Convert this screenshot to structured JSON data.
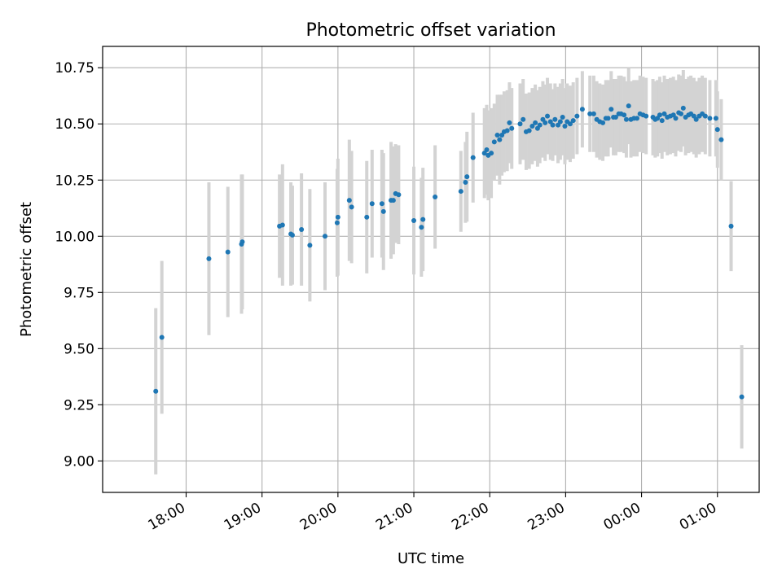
{
  "chart_data": {
    "type": "scatter",
    "title": "Photometric offset variation",
    "xlabel": "UTC time",
    "ylabel": "Photometric offset",
    "x_unit": "hours since 00:00 UTC of first night",
    "xlim": [
      16.9,
      25.55
    ],
    "ylim": [
      8.86,
      10.845
    ],
    "grid": true,
    "xticks": [
      {
        "value": 18,
        "label": "18:00"
      },
      {
        "value": 19,
        "label": "19:00"
      },
      {
        "value": 20,
        "label": "20:00"
      },
      {
        "value": 21,
        "label": "21:00"
      },
      {
        "value": 22,
        "label": "22:00"
      },
      {
        "value": 23,
        "label": "23:00"
      },
      {
        "value": 24,
        "label": "00:00"
      },
      {
        "value": 25,
        "label": "01:00"
      }
    ],
    "yticks": [
      {
        "value": 9.0,
        "label": "9.00"
      },
      {
        "value": 9.25,
        "label": "9.25"
      },
      {
        "value": 9.5,
        "label": "9.50"
      },
      {
        "value": 9.75,
        "label": "9.75"
      },
      {
        "value": 10.0,
        "label": "10.00"
      },
      {
        "value": 10.25,
        "label": "10.25"
      },
      {
        "value": 10.5,
        "label": "10.50"
      },
      {
        "value": 10.75,
        "label": "10.75"
      }
    ],
    "colors": {
      "points": "#1f77b4",
      "errorbars": "#d3d3d3",
      "grid": "#b0b0b0"
    },
    "points": [
      [
        17.6,
        9.31,
        0.37
      ],
      [
        17.68,
        9.55,
        0.34
      ],
      [
        18.3,
        9.9,
        0.34
      ],
      [
        18.55,
        9.93,
        0.29
      ],
      [
        18.73,
        9.965,
        0.31
      ],
      [
        18.74,
        9.975,
        0.3
      ],
      [
        19.23,
        10.045,
        0.23
      ],
      [
        19.27,
        10.05,
        0.27
      ],
      [
        19.38,
        10.01,
        0.23
      ],
      [
        19.4,
        10.005,
        0.22
      ],
      [
        19.52,
        10.03,
        0.25
      ],
      [
        19.63,
        9.96,
        0.25
      ],
      [
        19.83,
        10.0,
        0.24
      ],
      [
        19.99,
        10.06,
        0.24
      ],
      [
        20.0,
        10.085,
        0.26
      ],
      [
        20.15,
        10.16,
        0.27
      ],
      [
        20.18,
        10.13,
        0.25
      ],
      [
        20.38,
        10.085,
        0.25
      ],
      [
        20.45,
        10.145,
        0.24
      ],
      [
        20.58,
        10.145,
        0.24
      ],
      [
        20.6,
        10.11,
        0.26
      ],
      [
        20.7,
        10.16,
        0.26
      ],
      [
        20.73,
        10.16,
        0.24
      ],
      [
        20.76,
        10.19,
        0.22
      ],
      [
        20.8,
        10.185,
        0.22
      ],
      [
        21.0,
        10.07,
        0.24
      ],
      [
        21.1,
        10.04,
        0.22
      ],
      [
        21.12,
        10.075,
        0.23
      ],
      [
        21.28,
        10.175,
        0.23
      ],
      [
        21.62,
        10.2,
        0.18
      ],
      [
        21.68,
        10.24,
        0.18
      ],
      [
        21.7,
        10.265,
        0.2
      ],
      [
        21.78,
        10.35,
        0.2
      ],
      [
        21.93,
        10.37,
        0.2
      ],
      [
        21.96,
        10.385,
        0.2
      ],
      [
        21.98,
        10.36,
        0.2
      ],
      [
        22.02,
        10.37,
        0.2
      ],
      [
        22.06,
        10.42,
        0.17
      ],
      [
        22.1,
        10.45,
        0.18
      ],
      [
        22.13,
        10.43,
        0.2
      ],
      [
        22.16,
        10.45,
        0.18
      ],
      [
        22.19,
        10.465,
        0.18
      ],
      [
        22.23,
        10.47,
        0.18
      ],
      [
        22.26,
        10.505,
        0.18
      ],
      [
        22.29,
        10.48,
        0.18
      ],
      [
        22.4,
        10.5,
        0.18
      ],
      [
        22.44,
        10.52,
        0.18
      ],
      [
        22.48,
        10.465,
        0.17
      ],
      [
        22.52,
        10.47,
        0.17
      ],
      [
        22.56,
        10.49,
        0.17
      ],
      [
        22.6,
        10.505,
        0.17
      ],
      [
        22.63,
        10.48,
        0.17
      ],
      [
        22.66,
        10.495,
        0.17
      ],
      [
        22.7,
        10.52,
        0.17
      ],
      [
        22.73,
        10.505,
        0.17
      ],
      [
        22.76,
        10.535,
        0.17
      ],
      [
        22.8,
        10.51,
        0.17
      ],
      [
        22.83,
        10.495,
        0.16
      ],
      [
        22.86,
        10.52,
        0.16
      ],
      [
        22.9,
        10.495,
        0.17
      ],
      [
        22.93,
        10.51,
        0.17
      ],
      [
        22.96,
        10.53,
        0.17
      ],
      [
        22.99,
        10.49,
        0.17
      ],
      [
        23.02,
        10.51,
        0.17
      ],
      [
        23.06,
        10.5,
        0.17
      ],
      [
        23.1,
        10.515,
        0.17
      ],
      [
        23.15,
        10.535,
        0.17
      ],
      [
        23.22,
        10.565,
        0.17
      ],
      [
        23.32,
        10.545,
        0.17
      ],
      [
        23.37,
        10.545,
        0.17
      ],
      [
        23.41,
        10.52,
        0.17
      ],
      [
        23.45,
        10.51,
        0.17
      ],
      [
        23.49,
        10.505,
        0.17
      ],
      [
        23.53,
        10.525,
        0.17
      ],
      [
        23.56,
        10.525,
        0.17
      ],
      [
        23.6,
        10.565,
        0.17
      ],
      [
        23.63,
        10.53,
        0.17
      ],
      [
        23.66,
        10.53,
        0.17
      ],
      [
        23.7,
        10.545,
        0.17
      ],
      [
        23.73,
        10.545,
        0.17
      ],
      [
        23.77,
        10.54,
        0.17
      ],
      [
        23.8,
        10.52,
        0.17
      ],
      [
        23.83,
        10.58,
        0.17
      ],
      [
        23.86,
        10.52,
        0.17
      ],
      [
        23.9,
        10.525,
        0.17
      ],
      [
        23.94,
        10.525,
        0.17
      ],
      [
        23.98,
        10.545,
        0.17
      ],
      [
        24.02,
        10.54,
        0.17
      ],
      [
        24.06,
        10.535,
        0.17
      ],
      [
        24.15,
        10.53,
        0.17
      ],
      [
        24.18,
        10.52,
        0.17
      ],
      [
        24.21,
        10.525,
        0.17
      ],
      [
        24.24,
        10.54,
        0.17
      ],
      [
        24.27,
        10.515,
        0.17
      ],
      [
        24.3,
        10.545,
        0.17
      ],
      [
        24.34,
        10.53,
        0.17
      ],
      [
        24.38,
        10.535,
        0.17
      ],
      [
        24.42,
        10.54,
        0.17
      ],
      [
        24.45,
        10.525,
        0.17
      ],
      [
        24.49,
        10.55,
        0.17
      ],
      [
        24.52,
        10.545,
        0.17
      ],
      [
        24.55,
        10.57,
        0.17
      ],
      [
        24.58,
        10.53,
        0.17
      ],
      [
        24.62,
        10.54,
        0.17
      ],
      [
        24.65,
        10.545,
        0.17
      ],
      [
        24.69,
        10.535,
        0.17
      ],
      [
        24.72,
        10.52,
        0.17
      ],
      [
        24.76,
        10.535,
        0.17
      ],
      [
        24.8,
        10.545,
        0.17
      ],
      [
        24.84,
        10.535,
        0.17
      ],
      [
        24.9,
        10.525,
        0.17
      ],
      [
        24.98,
        10.525,
        0.17
      ],
      [
        25.0,
        10.475,
        0.17
      ],
      [
        25.05,
        10.43,
        0.18
      ],
      [
        25.18,
        10.045,
        0.2
      ],
      [
        25.32,
        9.285,
        0.23
      ]
    ]
  }
}
